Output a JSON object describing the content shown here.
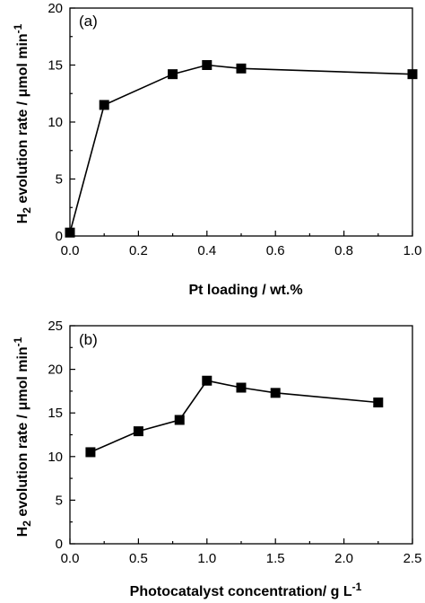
{
  "chart_data": [
    {
      "type": "line",
      "panel_label": "(a)",
      "xlabel": "Pt loading / wt.%",
      "ylabel": {
        "h": "H",
        "sub": "2",
        "text": " evolution rate / μmol min",
        "sup": "-1"
      },
      "xlim": [
        0.0,
        1.0
      ],
      "ylim": [
        0,
        20
      ],
      "xticks": [
        0.0,
        0.2,
        0.4,
        0.6,
        0.8,
        1.0
      ],
      "xtick_labels": [
        "0.0",
        "0.2",
        "0.4",
        "0.6",
        "0.8",
        "1.0"
      ],
      "yticks": [
        0,
        5,
        10,
        15,
        20
      ],
      "ytick_labels": [
        "0",
        "5",
        "10",
        "15",
        "20"
      ],
      "grid": false,
      "marker": "square",
      "series": [
        {
          "x": [
            0.0,
            0.1,
            0.3,
            0.4,
            0.5,
            1.0
          ],
          "y": [
            0.3,
            11.5,
            14.2,
            15.0,
            14.7,
            14.2
          ]
        }
      ]
    },
    {
      "type": "line",
      "panel_label": "(b)",
      "xlabel": {
        "text": "Photocatalyst concentration/ g L",
        "sup": "-1"
      },
      "ylabel": {
        "h": "H",
        "sub": "2",
        "text": " evolution rate / μmol min",
        "sup": "-1"
      },
      "xlim": [
        0.0,
        2.5
      ],
      "ylim": [
        0,
        25
      ],
      "xticks": [
        0.0,
        0.5,
        1.0,
        1.5,
        2.0,
        2.5
      ],
      "xtick_labels": [
        "0.0",
        "0.5",
        "1.0",
        "1.5",
        "2.0",
        "2.5"
      ],
      "yticks": [
        0,
        5,
        10,
        15,
        20,
        25
      ],
      "ytick_labels": [
        "0",
        "5",
        "10",
        "15",
        "20",
        "25"
      ],
      "grid": false,
      "marker": "square",
      "series": [
        {
          "x": [
            0.15,
            0.5,
            0.8,
            1.0,
            1.25,
            1.5,
            2.25
          ],
          "y": [
            10.5,
            12.9,
            14.2,
            18.7,
            17.9,
            17.3,
            16.2
          ]
        }
      ]
    }
  ]
}
